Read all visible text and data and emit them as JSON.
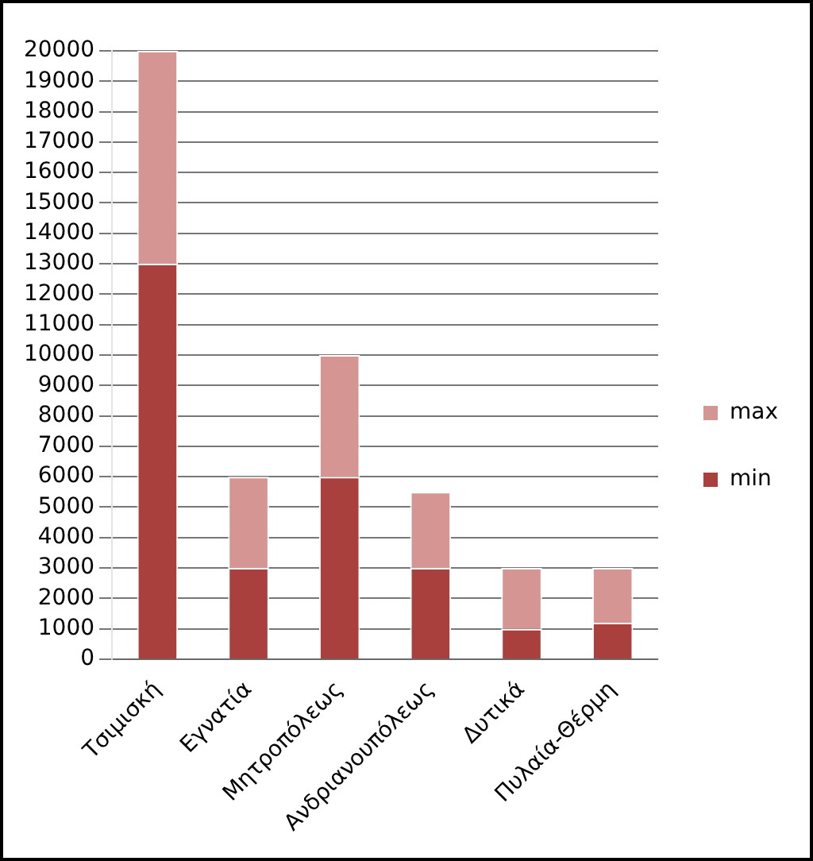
{
  "chart_data": {
    "type": "bar",
    "stacked": true,
    "categories": [
      "Τσιμισκή",
      "Εγνατία",
      "Μητροπόλεως",
      "Ανδριανουπόλεως",
      "Δυτικά",
      "Πυλαία-Θέρμη"
    ],
    "series": [
      {
        "name": "min",
        "color": "#a9403e",
        "values": [
          13000,
          3000,
          6000,
          3000,
          1000,
          1200
        ]
      },
      {
        "name": "max",
        "color": "#d49593",
        "values": [
          7000,
          3000,
          4000,
          2500,
          2000,
          1800
        ]
      }
    ],
    "ylim": [
      0,
      20000
    ],
    "yticks": [
      0,
      1000,
      2000,
      3000,
      4000,
      5000,
      6000,
      7000,
      8000,
      9000,
      10000,
      11000,
      12000,
      13000,
      14000,
      15000,
      16000,
      17000,
      18000,
      19000,
      20000
    ],
    "grid": "y",
    "legend": "right"
  }
}
